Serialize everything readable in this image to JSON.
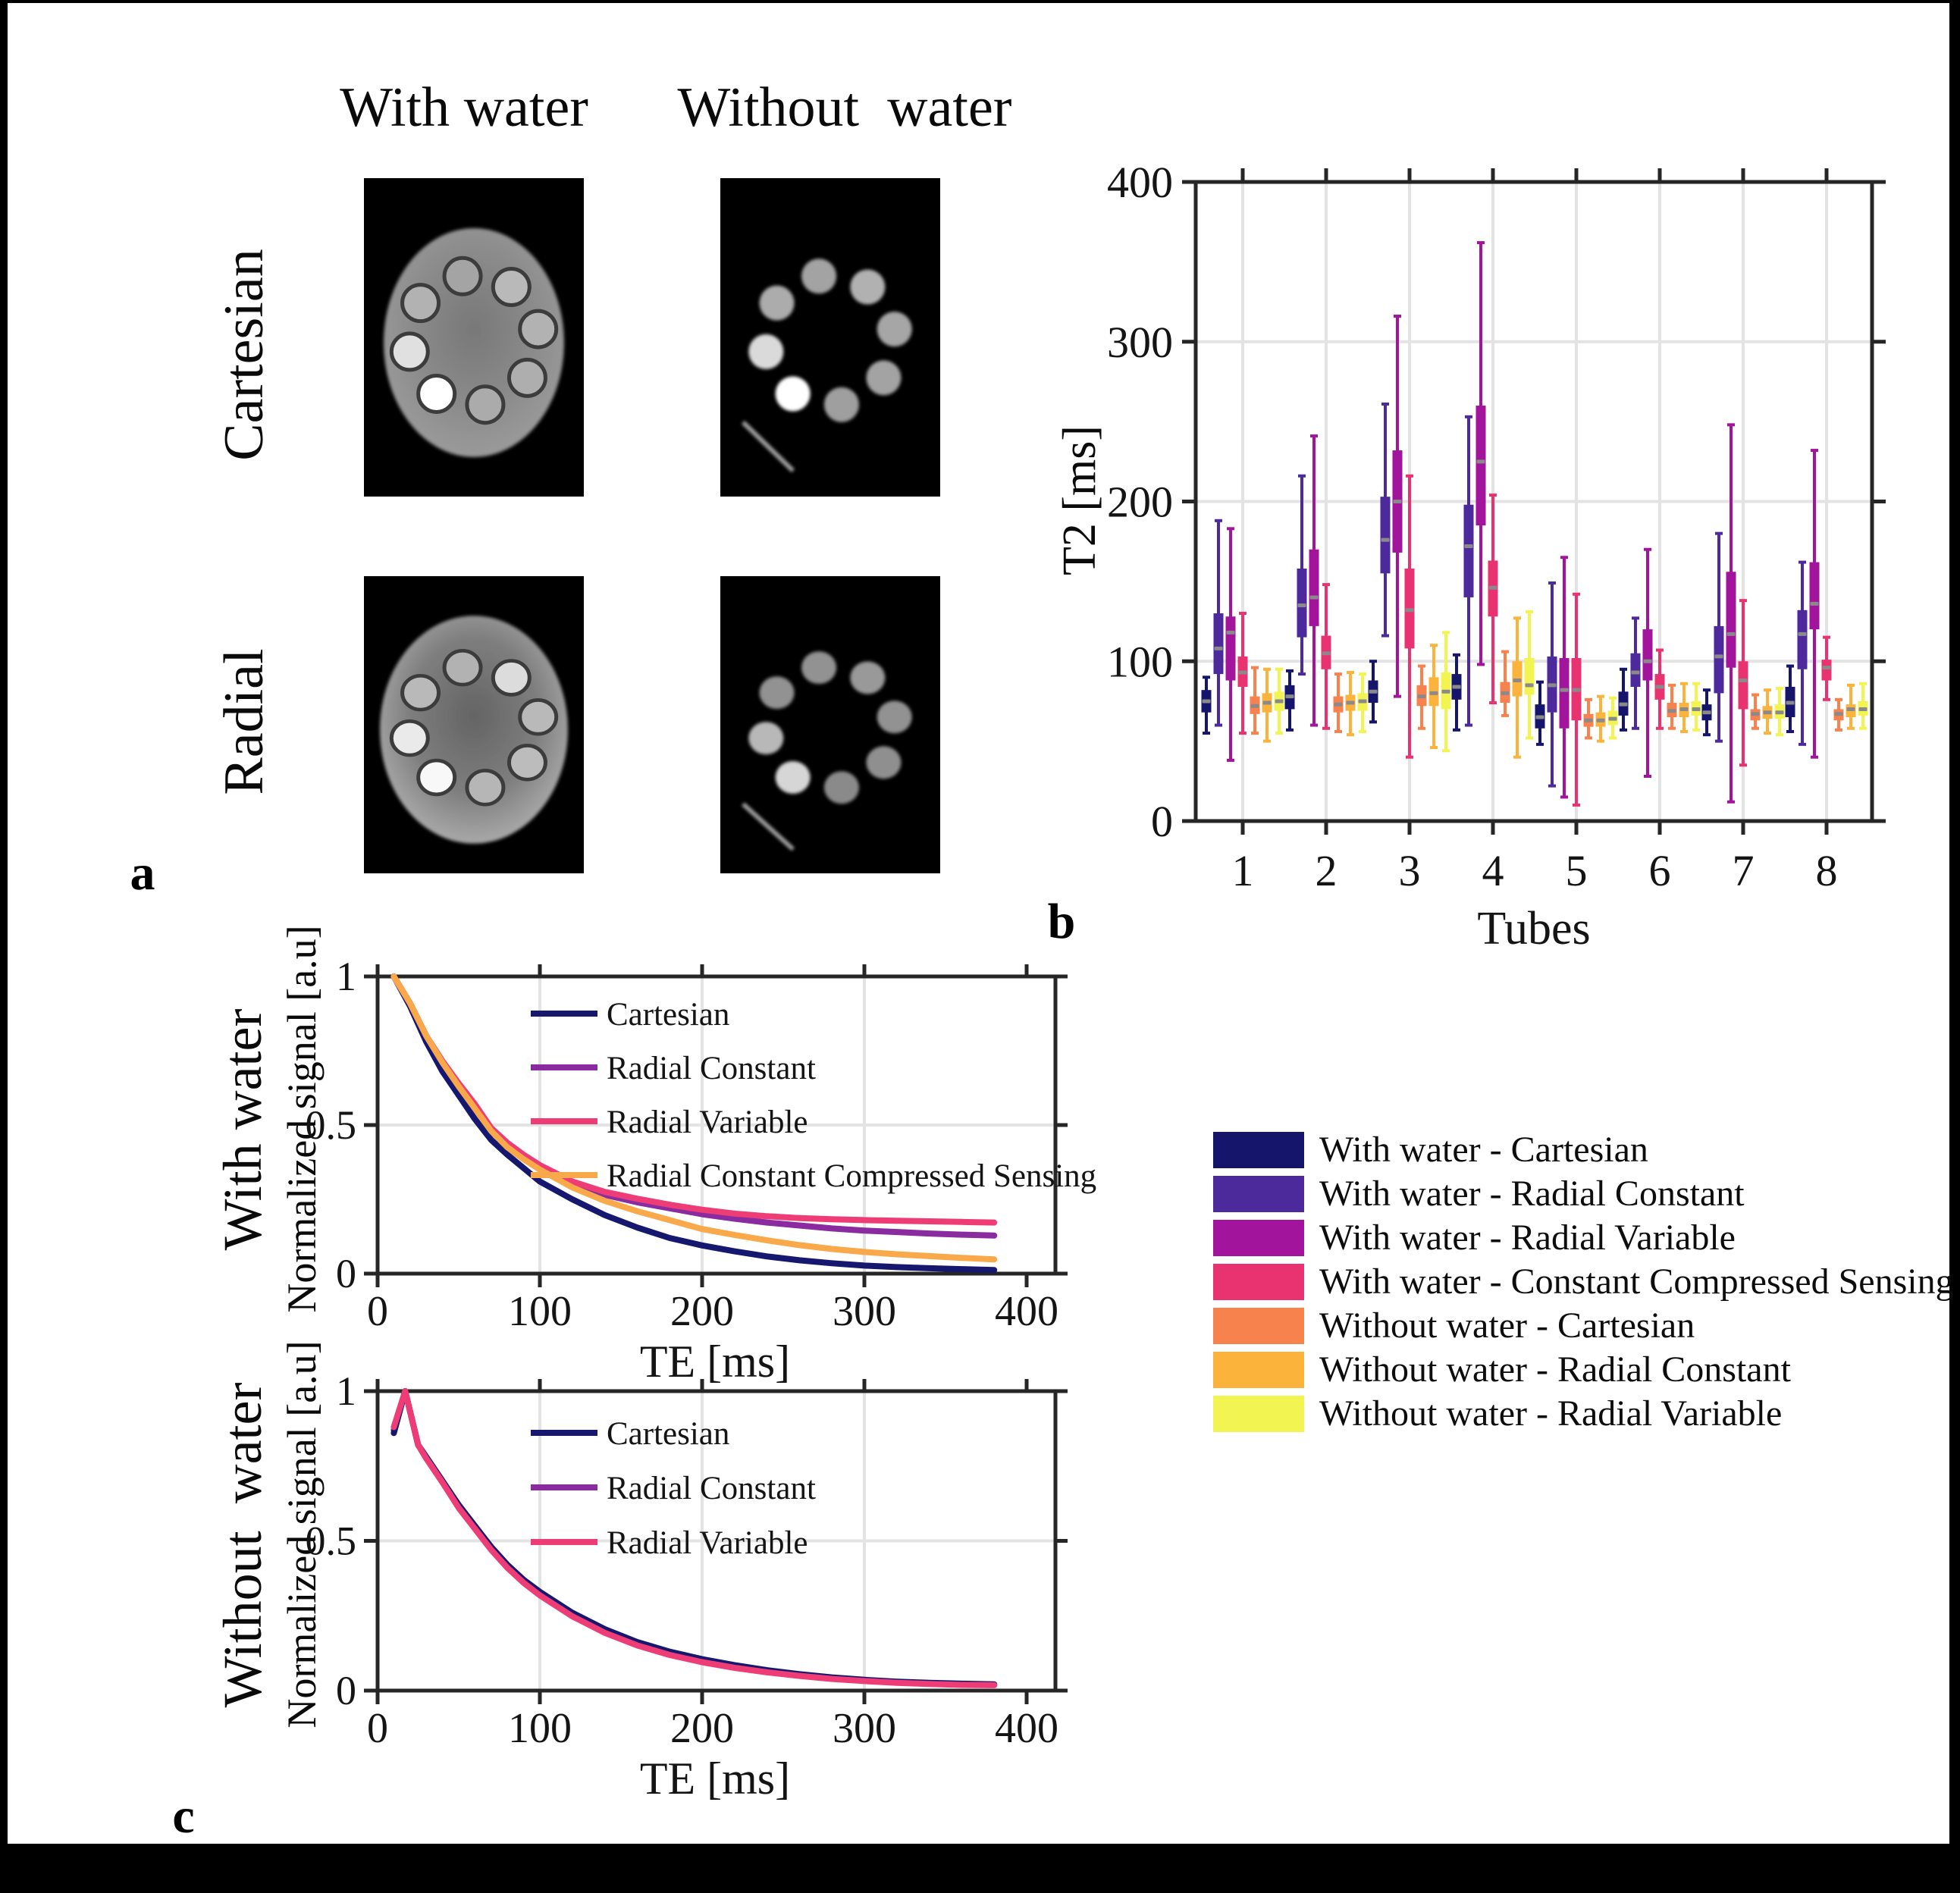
{
  "figure": {
    "background": "#000000",
    "canvas_color": "#ffffff",
    "panel_labels": {
      "a": "a",
      "b": "b",
      "c": "c"
    }
  },
  "palette": {
    "with_water_cartesian": "#14156B",
    "with_water_radial_constant": "#4C2A9C",
    "with_water_radial_variable": "#A2149B",
    "with_water_constant_compressed_sensing": "#E93370",
    "without_water_cartesian": "#F7824E",
    "without_water_radial_constant": "#FBB33C",
    "without_water_radial_variable": "#F2F451",
    "line_radial_constant": "#8A2BA0",
    "line_radial_variable": "#EE3D76",
    "line_compressed_sensing": "#F9A84A",
    "median": "#8A8A8A",
    "grid": "#E3E3E3",
    "axis": "#262626"
  },
  "panel_a": {
    "label": "a",
    "column_headers": [
      "With water",
      "Without  water"
    ],
    "row_headers": [
      "Cartesian",
      "Radial"
    ],
    "tube_angles_deg": [
      -10,
      35,
      80,
      125,
      170,
      215,
      260,
      305
    ],
    "phantoms": [
      {
        "name": "cartesian-with-water",
        "row": "Cartesian",
        "col": "With water",
        "has_body": true,
        "streak": false,
        "gain": 1,
        "tube_brightness": [
          0.35,
          0.5,
          0.45,
          0.42,
          0.4,
          1,
          0.78,
          0.45
        ]
      },
      {
        "name": "cartesian-without-water",
        "row": "Cartesian",
        "col": "Without water",
        "has_body": false,
        "streak": true,
        "gain": 1,
        "tube_brightness": [
          0.5,
          0.58,
          0.52,
          0.5,
          0.48,
          1,
          0.8,
          0.55
        ]
      },
      {
        "name": "radial-with-water",
        "row": "Radial",
        "col": "With water",
        "has_body": true,
        "streak": false,
        "gain": 1,
        "tube_brightness": [
          0.45,
          0.75,
          0.5,
          0.52,
          0.48,
          0.95,
          0.85,
          0.5
        ]
      },
      {
        "name": "radial-without-water",
        "row": "Radial",
        "col": "Without water",
        "has_body": false,
        "streak": true,
        "gain": 0.82,
        "tube_brightness": [
          0.5,
          0.55,
          0.5,
          0.48,
          0.45,
          0.95,
          0.75,
          0.5
        ]
      }
    ]
  },
  "panel_c": {
    "label": "c",
    "top": {
      "row_label": "With water"
    },
    "bottom": {
      "row_label": "Without  water"
    }
  },
  "legend": {
    "entries": [
      {
        "label": "With water - Cartesian",
        "color": "#14156B"
      },
      {
        "label": "With water - Radial Constant",
        "color": "#4C2A9C"
      },
      {
        "label": "With water - Radial Variable",
        "color": "#A2149B"
      },
      {
        "label": "With water - Constant Compressed Sensing",
        "color": "#E93370"
      },
      {
        "label": "Without water - Cartesian",
        "color": "#F7824E"
      },
      {
        "label": "Without water - Radial Constant",
        "color": "#FBB33C"
      },
      {
        "label": "Without water - Radial Variable",
        "color": "#F2F451"
      }
    ]
  },
  "chart_data": [
    {
      "id": "t2_boxplot",
      "type": "boxplot",
      "panel": "b",
      "xlabel": "Tubes",
      "ylabel": "T2 [ms]",
      "ylim": [
        0,
        400
      ],
      "yticks": [
        0,
        100,
        200,
        300,
        400
      ],
      "categories": [
        "1",
        "2",
        "3",
        "4",
        "5",
        "6",
        "7",
        "8"
      ],
      "grid": true,
      "series": [
        {
          "name": "With water - Cartesian",
          "color": "#14156B",
          "boxes": [
            [
              55,
              68,
              75,
              82,
              90
            ],
            [
              57,
              70,
              78,
              85,
              94
            ],
            [
              62,
              74,
              81,
              88,
              100
            ],
            [
              57,
              76,
              84,
              92,
              104
            ],
            [
              48,
              58,
              65,
              73,
              87
            ],
            [
              57,
              66,
              73,
              81,
              95
            ],
            [
              54,
              63,
              68,
              73,
              82
            ],
            [
              56,
              65,
              74,
              84,
              97
            ]
          ]
        },
        {
          "name": "With water - Radial Constant",
          "color": "#4C2A9C",
          "boxes": [
            [
              60,
              92,
              108,
              130,
              188
            ],
            [
              92,
              115,
              135,
              158,
              216
            ],
            [
              116,
              155,
              176,
              203,
              261
            ],
            [
              60,
              140,
              172,
              198,
              253
            ],
            [
              22,
              68,
              85,
              103,
              149
            ],
            [
              58,
              84,
              93,
              105,
              127
            ],
            [
              50,
              80,
              103,
              122,
              180
            ],
            [
              48,
              95,
              117,
              132,
              162
            ]
          ]
        },
        {
          "name": "With water - Radial Variable",
          "color": "#A2149B",
          "boxes": [
            [
              38,
              88,
              118,
              128,
              183
            ],
            [
              60,
              122,
              140,
              170,
              241
            ],
            [
              78,
              168,
              200,
              232,
              316
            ],
            [
              98,
              185,
              225,
              260,
              362
            ],
            [
              15,
              58,
              82,
              102,
              165
            ],
            [
              28,
              88,
              100,
              120,
              170
            ],
            [
              12,
              96,
              117,
              156,
              248
            ],
            [
              40,
              120,
              136,
              162,
              232
            ]
          ]
        },
        {
          "name": "With water - Constant Compressed Sensing",
          "color": "#E93370",
          "boxes": [
            [
              55,
              84,
              93,
              103,
              130
            ],
            [
              58,
              95,
              105,
              116,
              148
            ],
            [
              40,
              108,
              132,
              158,
              216
            ],
            [
              74,
              128,
              146,
              163,
              204
            ],
            [
              10,
              63,
              82,
              102,
              142
            ],
            [
              58,
              76,
              84,
              92,
              107
            ],
            [
              35,
              70,
              88,
              100,
              138
            ],
            [
              76,
              88,
              96,
              101,
              115
            ]
          ]
        },
        {
          "name": "Without water - Cartesian",
          "color": "#F7824E",
          "boxes": [
            [
              55,
              67,
              72,
              78,
              96
            ],
            [
              56,
              68,
              73,
              78,
              92
            ],
            [
              58,
              72,
              78,
              85,
              97
            ],
            [
              66,
              74,
              80,
              87,
              106
            ],
            [
              52,
              59,
              63,
              67,
              76
            ],
            [
              58,
              65,
              69,
              74,
              85
            ],
            [
              58,
              63,
              67,
              70,
              79
            ],
            [
              57,
              63,
              67,
              70,
              76
            ]
          ]
        },
        {
          "name": "Without water - Radial Constant",
          "color": "#FBB33C",
          "boxes": [
            [
              50,
              68,
              74,
              80,
              95
            ],
            [
              54,
              69,
              74,
              79,
              93
            ],
            [
              46,
              72,
              80,
              90,
              110
            ],
            [
              40,
              78,
              88,
              100,
              127
            ],
            [
              50,
              59,
              63,
              68,
              78
            ],
            [
              56,
              65,
              70,
              74,
              86
            ],
            [
              55,
              64,
              68,
              72,
              82
            ],
            [
              58,
              65,
              70,
              73,
              85
            ]
          ]
        },
        {
          "name": "Without water - Radial Variable",
          "color": "#F2F451",
          "boxes": [
            [
              55,
              69,
              75,
              81,
              95
            ],
            [
              56,
              69,
              75,
              80,
              92
            ],
            [
              44,
              70,
              81,
              93,
              118
            ],
            [
              52,
              79,
              85,
              102,
              131
            ],
            [
              52,
              60,
              64,
              69,
              77
            ],
            [
              57,
              66,
              70,
              75,
              86
            ],
            [
              54,
              64,
              68,
              73,
              83
            ],
            [
              58,
              66,
              70,
              75,
              86
            ]
          ]
        }
      ]
    },
    {
      "id": "decay_with_water",
      "type": "line",
      "panel": "c-top",
      "row_label": "With water",
      "xlabel": "TE [ms]",
      "ylabel": "Normalized signal [a.u]",
      "xlim": [
        0,
        417
      ],
      "ylim": [
        0,
        1
      ],
      "xticks": [
        0,
        100,
        200,
        300,
        400
      ],
      "yticks": [
        0,
        0.5,
        1
      ],
      "grid": true,
      "legend_position": "upper-right-inside",
      "x": [
        10,
        20,
        30,
        40,
        50,
        60,
        70,
        80,
        90,
        100,
        120,
        140,
        160,
        180,
        200,
        220,
        240,
        260,
        280,
        300,
        320,
        340,
        360,
        380
      ],
      "series": [
        {
          "name": "Cartesian",
          "color": "#16186F",
          "values": [
            1,
            0.9,
            0.78,
            0.68,
            0.6,
            0.52,
            0.45,
            0.4,
            0.355,
            0.31,
            0.25,
            0.197,
            0.155,
            0.12,
            0.095,
            0.075,
            0.058,
            0.045,
            0.035,
            0.027,
            0.022,
            0.018,
            0.015,
            0.012
          ]
        },
        {
          "name": "Radial Constant",
          "color": "#8A2BA0",
          "values": [
            1,
            0.91,
            0.8,
            0.71,
            0.63,
            0.56,
            0.485,
            0.43,
            0.39,
            0.355,
            0.3,
            0.265,
            0.24,
            0.22,
            0.2,
            0.185,
            0.172,
            0.162,
            0.152,
            0.145,
            0.14,
            0.135,
            0.131,
            0.128
          ]
        },
        {
          "name": "Radial Variable",
          "color": "#EE3D76",
          "values": [
            1,
            0.91,
            0.8,
            0.715,
            0.64,
            0.57,
            0.49,
            0.44,
            0.4,
            0.365,
            0.31,
            0.275,
            0.252,
            0.232,
            0.215,
            0.202,
            0.193,
            0.187,
            0.183,
            0.18,
            0.178,
            0.176,
            0.174,
            0.172
          ]
        },
        {
          "name": "Radial Constant Compressed Sensing",
          "color": "#F9A84A",
          "values": [
            1,
            0.91,
            0.8,
            0.71,
            0.63,
            0.555,
            0.48,
            0.425,
            0.385,
            0.35,
            0.29,
            0.245,
            0.21,
            0.18,
            0.15,
            0.13,
            0.112,
            0.096,
            0.083,
            0.073,
            0.065,
            0.059,
            0.053,
            0.048
          ]
        }
      ]
    },
    {
      "id": "decay_without_water",
      "type": "line",
      "panel": "c-bottom",
      "row_label": "Without water",
      "xlabel": "TE [ms]",
      "ylabel": "Normalized signal [a.u]",
      "xlim": [
        0,
        417
      ],
      "ylim": [
        0,
        1
      ],
      "xticks": [
        0,
        100,
        200,
        300,
        400
      ],
      "yticks": [
        0,
        0.5,
        1
      ],
      "grid": true,
      "legend_position": "upper-right-inside",
      "x": [
        10,
        17,
        25,
        30,
        40,
        50,
        60,
        70,
        80,
        90,
        100,
        120,
        140,
        160,
        180,
        200,
        220,
        240,
        260,
        280,
        300,
        320,
        340,
        360,
        380
      ],
      "series": [
        {
          "name": "Cartesian",
          "color": "#16186F",
          "values": [
            0.86,
            1,
            0.82,
            0.78,
            0.7,
            0.62,
            0.55,
            0.48,
            0.42,
            0.37,
            0.33,
            0.26,
            0.205,
            0.162,
            0.13,
            0.105,
            0.085,
            0.068,
            0.055,
            0.044,
            0.036,
            0.03,
            0.026,
            0.023,
            0.021
          ]
        },
        {
          "name": "Radial Constant",
          "color": "#8A2BA0",
          "values": [
            0.87,
            1,
            0.82,
            0.78,
            0.7,
            0.615,
            0.545,
            0.475,
            0.415,
            0.365,
            0.324,
            0.254,
            0.199,
            0.156,
            0.124,
            0.1,
            0.081,
            0.065,
            0.052,
            0.042,
            0.034,
            0.028,
            0.024,
            0.021,
            0.019
          ]
        },
        {
          "name": "Radial Variable",
          "color": "#EE3D76",
          "values": [
            0.88,
            1,
            0.82,
            0.775,
            0.695,
            0.61,
            0.54,
            0.47,
            0.41,
            0.36,
            0.318,
            0.248,
            0.193,
            0.151,
            0.119,
            0.095,
            0.076,
            0.061,
            0.049,
            0.039,
            0.032,
            0.026,
            0.022,
            0.019,
            0.018
          ]
        }
      ]
    }
  ]
}
